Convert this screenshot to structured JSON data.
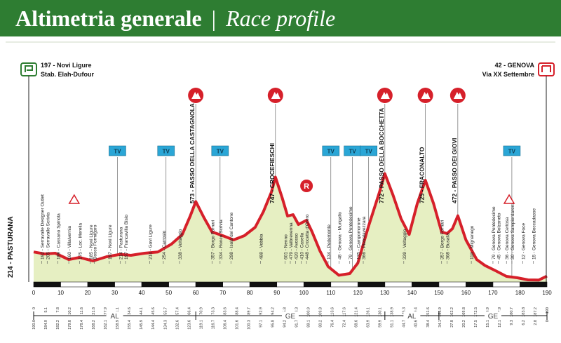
{
  "header": {
    "title_it": "Altimetria generale",
    "separator": "|",
    "title_en": "Race profile"
  },
  "colors": {
    "title_bg": "#2e7d32",
    "profile_line": "#d6202a",
    "profile_fill": "#e6efc2",
    "kom": "#d6202a",
    "sprint": "#2aa6d6"
  },
  "chart_data": {
    "type": "area",
    "xlabel": "",
    "ylabel": "",
    "xlim": [
      0,
      190
    ],
    "x_ticks": [
      0,
      10,
      20,
      30,
      40,
      50,
      60,
      70,
      80,
      90,
      100,
      110,
      120,
      130,
      140,
      150,
      160,
      170,
      180,
      190
    ],
    "profile": [
      {
        "km": 0,
        "alt": 214
      },
      {
        "km": 4,
        "alt": 200
      },
      {
        "km": 8,
        "alt": 205
      },
      {
        "km": 13,
        "alt": 160
      },
      {
        "km": 17,
        "alt": 175
      },
      {
        "km": 22,
        "alt": 150
      },
      {
        "km": 27,
        "alt": 180
      },
      {
        "km": 32,
        "alt": 197
      },
      {
        "km": 36,
        "alt": 190
      },
      {
        "km": 41,
        "alt": 205
      },
      {
        "km": 46,
        "alt": 214
      },
      {
        "km": 51,
        "alt": 270
      },
      {
        "km": 55,
        "alt": 338
      },
      {
        "km": 58,
        "alt": 473
      },
      {
        "km": 60,
        "alt": 573
      },
      {
        "km": 63,
        "alt": 460
      },
      {
        "km": 66,
        "alt": 357
      },
      {
        "km": 70,
        "alt": 330
      },
      {
        "km": 74,
        "alt": 300
      },
      {
        "km": 78,
        "alt": 330
      },
      {
        "km": 82,
        "alt": 390
      },
      {
        "km": 85,
        "alt": 500
      },
      {
        "km": 88,
        "alt": 640
      },
      {
        "km": 89.5,
        "alt": 747
      },
      {
        "km": 92,
        "alt": 600
      },
      {
        "km": 94,
        "alt": 470
      },
      {
        "km": 96,
        "alt": 480
      },
      {
        "km": 98,
        "alt": 410
      },
      {
        "km": 101,
        "alt": 440
      },
      {
        "km": 103,
        "alt": 360
      },
      {
        "km": 106,
        "alt": 220
      },
      {
        "km": 109,
        "alt": 110
      },
      {
        "km": 113,
        "alt": 48
      },
      {
        "km": 117,
        "alt": 60
      },
      {
        "km": 120,
        "alt": 135
      },
      {
        "km": 124,
        "alt": 400
      },
      {
        "km": 128,
        "alt": 640
      },
      {
        "km": 130,
        "alt": 772
      },
      {
        "km": 133,
        "alt": 620
      },
      {
        "km": 136,
        "alt": 450
      },
      {
        "km": 139,
        "alt": 339
      },
      {
        "km": 142,
        "alt": 560
      },
      {
        "km": 145,
        "alt": 725
      },
      {
        "km": 148,
        "alt": 560
      },
      {
        "km": 151,
        "alt": 357
      },
      {
        "km": 153,
        "alt": 345
      },
      {
        "km": 155,
        "alt": 380
      },
      {
        "km": 157,
        "alt": 472
      },
      {
        "km": 160,
        "alt": 300
      },
      {
        "km": 164,
        "alt": 160
      },
      {
        "km": 167,
        "alt": 118
      },
      {
        "km": 171,
        "alt": 80
      },
      {
        "km": 175,
        "alt": 40
      },
      {
        "km": 179,
        "alt": 30
      },
      {
        "km": 183,
        "alt": 15
      },
      {
        "km": 187,
        "alt": 14
      },
      {
        "km": 190,
        "alt": 42
      }
    ],
    "start": {
      "line1": "197 - Novi Ligure",
      "line2": "Stab. Elah-Dufour",
      "axis_label": "214 - PASTURANA"
    },
    "finish": {
      "line1": "42 - GENOVA",
      "line2": "Via XX Settembre"
    },
    "kom": [
      {
        "km": 60,
        "label": "573 - PASSO DELLA CASTAGNOLA"
      },
      {
        "km": 89.5,
        "label": "747 - CROCEFIESCHI"
      },
      {
        "km": 130,
        "label": "772 - PASSO DELLA BOCCHETTA"
      },
      {
        "km": 145,
        "label": "725 - FRACONALTO"
      },
      {
        "km": 157,
        "label": "472 - PASSO DEI GIOVI"
      }
    ],
    "intermediate_sprint_km": 101,
    "tv_markers": [
      31,
      49,
      69,
      110,
      118,
      124,
      177
    ],
    "feed_zones": [
      15,
      176
    ],
    "place_labels": [
      {
        "km": 3,
        "label": "192 - Serravalle Designer Outlet"
      },
      {
        "km": 5,
        "label": "205 - Serravalle Scrivia"
      },
      {
        "km": 9,
        "label": "199 - Cassano Spinola"
      },
      {
        "km": 13,
        "label": "160 - Villalvernia"
      },
      {
        "km": 17,
        "label": "175 - Loc. Merella"
      },
      {
        "km": 21,
        "label": "185 - Novi Ligure"
      },
      {
        "km": 22.5,
        "label": "Bosco Formigaro"
      },
      {
        "km": 28,
        "label": "197 - Novi Ligure"
      },
      {
        "km": 32,
        "label": "214 - Pasturana"
      },
      {
        "km": 34,
        "label": "197 - Francavilla Bisio"
      },
      {
        "km": 43,
        "label": "214 - Gavi Ligure"
      },
      {
        "km": 48,
        "label": "254 - Carrosio"
      },
      {
        "km": 54,
        "label": "338 - Voltaggio"
      },
      {
        "km": 66,
        "label": "357 - Borgo Fornari"
      },
      {
        "km": 69,
        "label": "334 - Ronco Scrivia"
      },
      {
        "km": 73,
        "label": "298 - Isola del Cantone"
      },
      {
        "km": 84,
        "label": "488 - Vobbia"
      },
      {
        "km": 93,
        "label": "601 - Nenno"
      },
      {
        "km": 95,
        "label": "479 - Valbrevenna"
      },
      {
        "km": 97,
        "label": "420 - Avosso"
      },
      {
        "km": 99,
        "label": "410 - Casella"
      },
      {
        "km": 101,
        "label": "448 - Crocetta d'Orero"
      },
      {
        "km": 109,
        "label": "134 - Pedemonte"
      },
      {
        "km": 113,
        "label": "48 - Genova - Murigallo"
      },
      {
        "km": 117,
        "label": "79 - Genova Pontedecimo"
      },
      {
        "km": 120,
        "label": "135 - Campomorone"
      },
      {
        "km": 122,
        "label": "366 - Pietralavezzara"
      },
      {
        "km": 137,
        "label": "339 - Voltaggio"
      },
      {
        "km": 151,
        "label": "357 - Borgo Fornari"
      },
      {
        "km": 153,
        "label": "368 - Busalla"
      },
      {
        "km": 162,
        "label": "118 - Mignanego"
      },
      {
        "km": 170,
        "label": "79 - Genova Pontedecimo"
      },
      {
        "km": 172,
        "label": "45 - Genova Bolzaneto"
      },
      {
        "km": 175,
        "label": "36 - Genova Certosa"
      },
      {
        "km": 177,
        "label": "30 - Genova Sampierdarena"
      },
      {
        "km": 181,
        "label": "12 - Genova Foce"
      },
      {
        "km": 185,
        "label": "15 - Genova Boccadasse"
      }
    ],
    "distance_rows": [
      [
        "0",
        "5.1",
        "7.8",
        "10.2",
        "11.6",
        "21.8",
        "27.9",
        "31.1",
        "34.6",
        "44.1",
        "45.6",
        "55.7",
        "57.4",
        "66.4",
        "70.9",
        "73.3",
        "83.6",
        "88.4",
        "89.7",
        "92.9",
        "94.2",
        "95.8",
        "98.3",
        "100.9",
        "109.8",
        "113.6",
        "117.6",
        "121.4",
        "126.1",
        "130.1",
        "138.9",
        "145.3",
        "149.4",
        "151.6",
        "155.9",
        "162.2",
        "169.8",
        "172.5",
        "174.9",
        "177.9",
        "180.7",
        "183.8",
        "187.2",
        "190"
      ],
      [
        "190.0",
        "184.9",
        "182.2",
        "179.8",
        "178.4",
        "168.2",
        "162.1",
        "158.9",
        "155.4",
        "145.9",
        "144.4",
        "134.3",
        "132.6",
        "123.6",
        "119.1",
        "116.7",
        "106.4",
        "101.6",
        "100.3",
        "97.1",
        "95.8",
        "94.2",
        "91.7",
        "89.1",
        "80.2",
        "76.4",
        "72.4",
        "68.6",
        "63.9",
        "59.9",
        "51.1",
        "44.7",
        "40.6",
        "38.4",
        "34.1",
        "27.8",
        "20.2",
        "17.5",
        "15.1",
        "12.1",
        "9.3",
        "6.2",
        "2.8",
        "0"
      ]
    ],
    "regions": [
      {
        "from": 0,
        "to": 60,
        "label": "AL"
      },
      {
        "from": 60,
        "to": 130,
        "label": "GE"
      },
      {
        "from": 130,
        "to": 150,
        "label": "AL"
      },
      {
        "from": 150,
        "to": 190,
        "label": "GE"
      }
    ]
  }
}
